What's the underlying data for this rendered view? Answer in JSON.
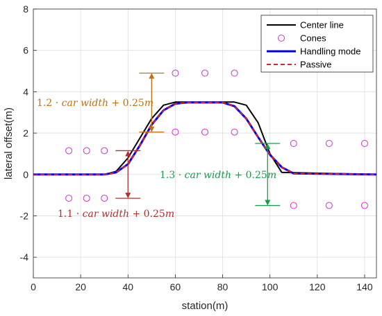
{
  "chart_data": {
    "type": "line",
    "xlabel": "station(m)",
    "ylabel": "lateral offset(m)",
    "xlim": [
      0,
      145
    ],
    "ylim": [
      -5,
      8
    ],
    "x_ticks": [
      0,
      20,
      40,
      60,
      80,
      100,
      120,
      140
    ],
    "y_ticks": [
      -4,
      -2,
      0,
      2,
      4,
      6,
      8
    ],
    "grid": true,
    "legend_position": "top-right",
    "series": [
      {
        "name": "Center line",
        "color": "#000000",
        "style": "solid",
        "x": [
          0,
          30,
          35,
          40,
          45,
          50,
          55,
          60,
          85,
          90,
          95,
          100,
          105,
          145
        ],
        "y": [
          0,
          0,
          0.15,
          0.8,
          1.75,
          2.7,
          3.35,
          3.5,
          3.5,
          3.35,
          2.5,
          1.0,
          0.1,
          0
        ]
      },
      {
        "name": "Cones",
        "color": "#cc33cc",
        "style": "circle-marker",
        "x": [
          15,
          22.5,
          30,
          15,
          22.5,
          30,
          60,
          72.5,
          85,
          60,
          72.5,
          85,
          110,
          125,
          140,
          110,
          125,
          140
        ],
        "y": [
          1.15,
          1.15,
          1.15,
          -1.15,
          -1.15,
          -1.15,
          4.9,
          4.9,
          4.9,
          2.05,
          2.05,
          2.05,
          1.5,
          1.5,
          1.5,
          -1.5,
          -1.5,
          -1.5
        ]
      },
      {
        "name": "Handling mode",
        "color": "#0000ee",
        "style": "solid",
        "x": [
          0,
          30,
          35,
          40,
          45,
          50,
          55,
          60,
          65,
          80,
          85,
          90,
          95,
          100,
          105,
          110,
          145
        ],
        "y": [
          0,
          0,
          0.1,
          0.5,
          1.4,
          2.4,
          3.1,
          3.42,
          3.48,
          3.48,
          3.3,
          2.7,
          1.8,
          0.95,
          0.35,
          0.05,
          0
        ]
      },
      {
        "name": "Passive",
        "color": "#dd2222",
        "style": "dashed",
        "x": [
          0,
          30,
          35,
          40,
          45,
          50,
          55,
          60,
          65,
          80,
          85,
          90,
          95,
          100,
          105,
          110,
          145
        ],
        "y": [
          0,
          0,
          0.1,
          0.5,
          1.4,
          2.4,
          3.1,
          3.42,
          3.48,
          3.48,
          3.3,
          2.7,
          1.8,
          0.95,
          0.35,
          0.05,
          0
        ]
      }
    ],
    "annotations": [
      {
        "prefix": "1.2 · ",
        "math": "car width",
        "suffix": " + 0.25",
        "unit": "m",
        "color": "#c07010",
        "arrow_x": 50,
        "arrow_y": [
          2.05,
          4.9
        ]
      },
      {
        "prefix": "1.1 · ",
        "math": "car width",
        "suffix": " + 0.25",
        "unit": "m",
        "color": "#b03030",
        "arrow_x": 40,
        "arrow_y": [
          -1.15,
          1.15
        ]
      },
      {
        "prefix": "1.3 · ",
        "math": "car width",
        "suffix": " + 0.25",
        "unit": "m",
        "color": "#1a9a4a",
        "arrow_x": 99,
        "arrow_y": [
          -1.5,
          1.5
        ]
      }
    ]
  }
}
